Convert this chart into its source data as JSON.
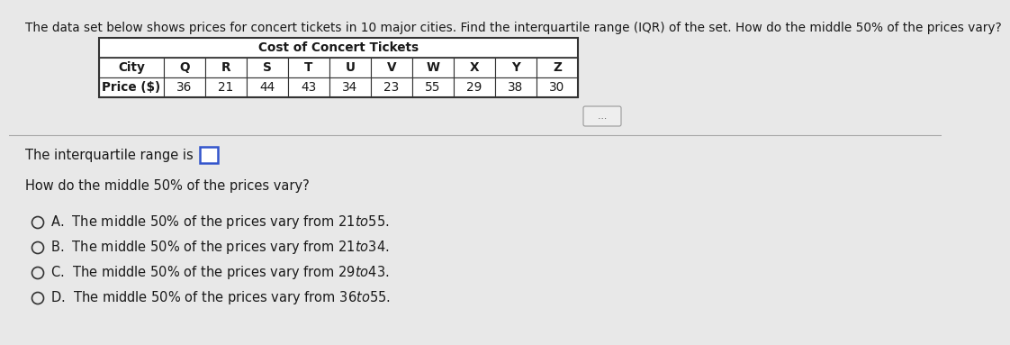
{
  "question_text": "The data set below shows prices for concert tickets in 10 major cities. Find the interquartile range (IQR) of the set. How do the middle 50% of the prices vary?",
  "table_title": "Cost of Concert Tickets",
  "cities": [
    "City",
    "Q",
    "R",
    "S",
    "T",
    "U",
    "V",
    "W",
    "X",
    "Y",
    "Z"
  ],
  "prices": [
    "Price ($)",
    "36",
    "21",
    "44",
    "43",
    "34",
    "23",
    "55",
    "29",
    "38",
    "30"
  ],
  "iqr_label": "The interquartile range is",
  "question2": "How do the middle 50% of the prices vary?",
  "options": [
    "A.  The middle 50% of the prices vary from $21 to $55.",
    "B.  The middle 50% of the prices vary from $21 to $34.",
    "C.  The middle 50% of the prices vary from $29 to $43.",
    "D.  The middle 50% of the prices vary from $36 to $55."
  ],
  "bg_color": "#e8e8e8",
  "table_bg": "#ffffff",
  "text_color": "#1a1a1a",
  "border_color": "#333333",
  "question_fontsize": 9.8,
  "body_fontsize": 10.5,
  "option_fontsize": 10.5,
  "table_fontsize": 9.8
}
